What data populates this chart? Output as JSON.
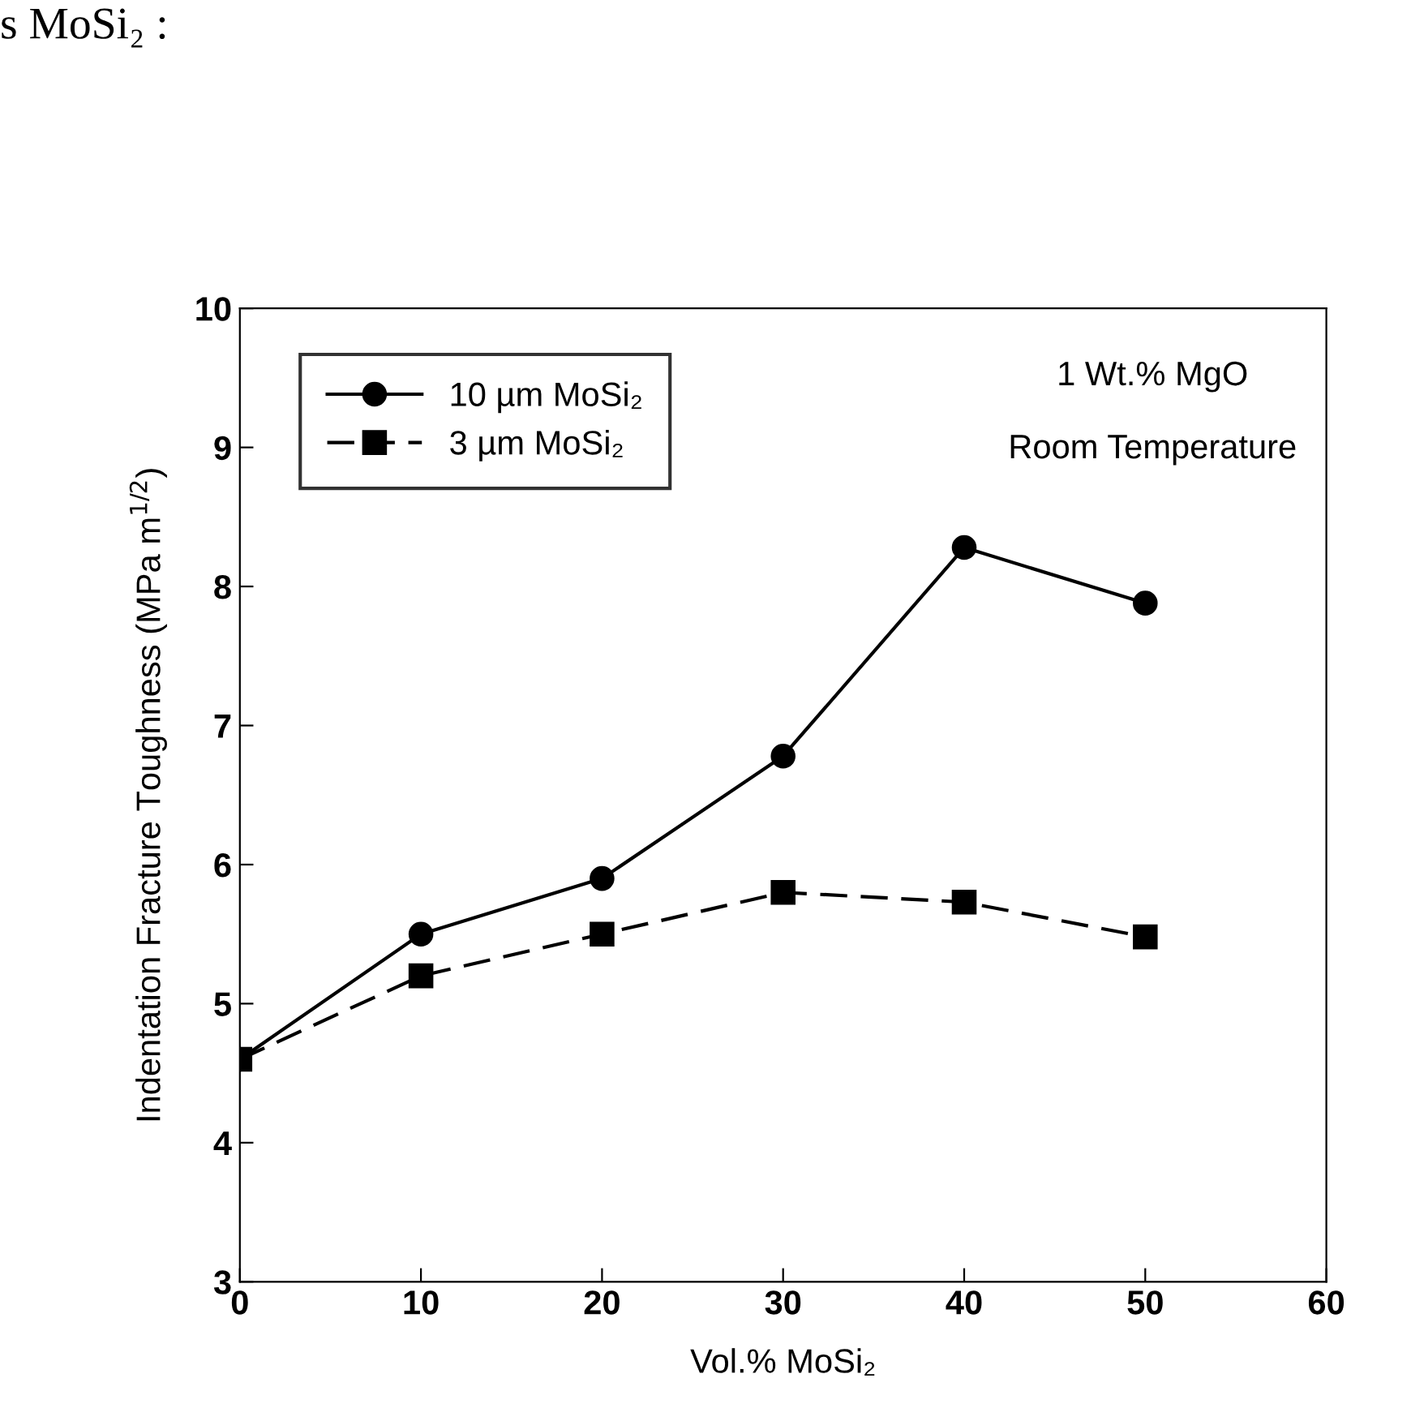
{
  "chart_data": {
    "type": "line",
    "xlabel": "Vol.% MoSi₂",
    "ylabel": "Indentation Fracture Toughness (MPa m$^{1/2}$)",
    "x": [
      0,
      10,
      20,
      30,
      40,
      50
    ],
    "series": [
      {
        "name": "10 µm MoSi₂",
        "color": "#000000",
        "marker": "circle",
        "line_style": "solid",
        "values": [
          4.6,
          5.5,
          5.9,
          6.78,
          8.28,
          7.88
        ]
      },
      {
        "name": "3 µm MoSi₂",
        "color": "#000000",
        "marker": "square",
        "line_style": "dashed",
        "values": [
          4.6,
          5.2,
          5.5,
          5.8,
          5.73,
          5.48
        ]
      }
    ],
    "xlim": [
      0,
      60
    ],
    "xticks": [
      0,
      10,
      20,
      30,
      40,
      50,
      60
    ],
    "ylim": [
      3,
      10
    ],
    "yticks": [
      3,
      4,
      5,
      6,
      7,
      8,
      9,
      10
    ],
    "legend": "top left",
    "grid": false,
    "annotations": [
      "s MoSi₂ :",
      "1 Wt.% MgO",
      "Room Temperature"
    ]
  }
}
